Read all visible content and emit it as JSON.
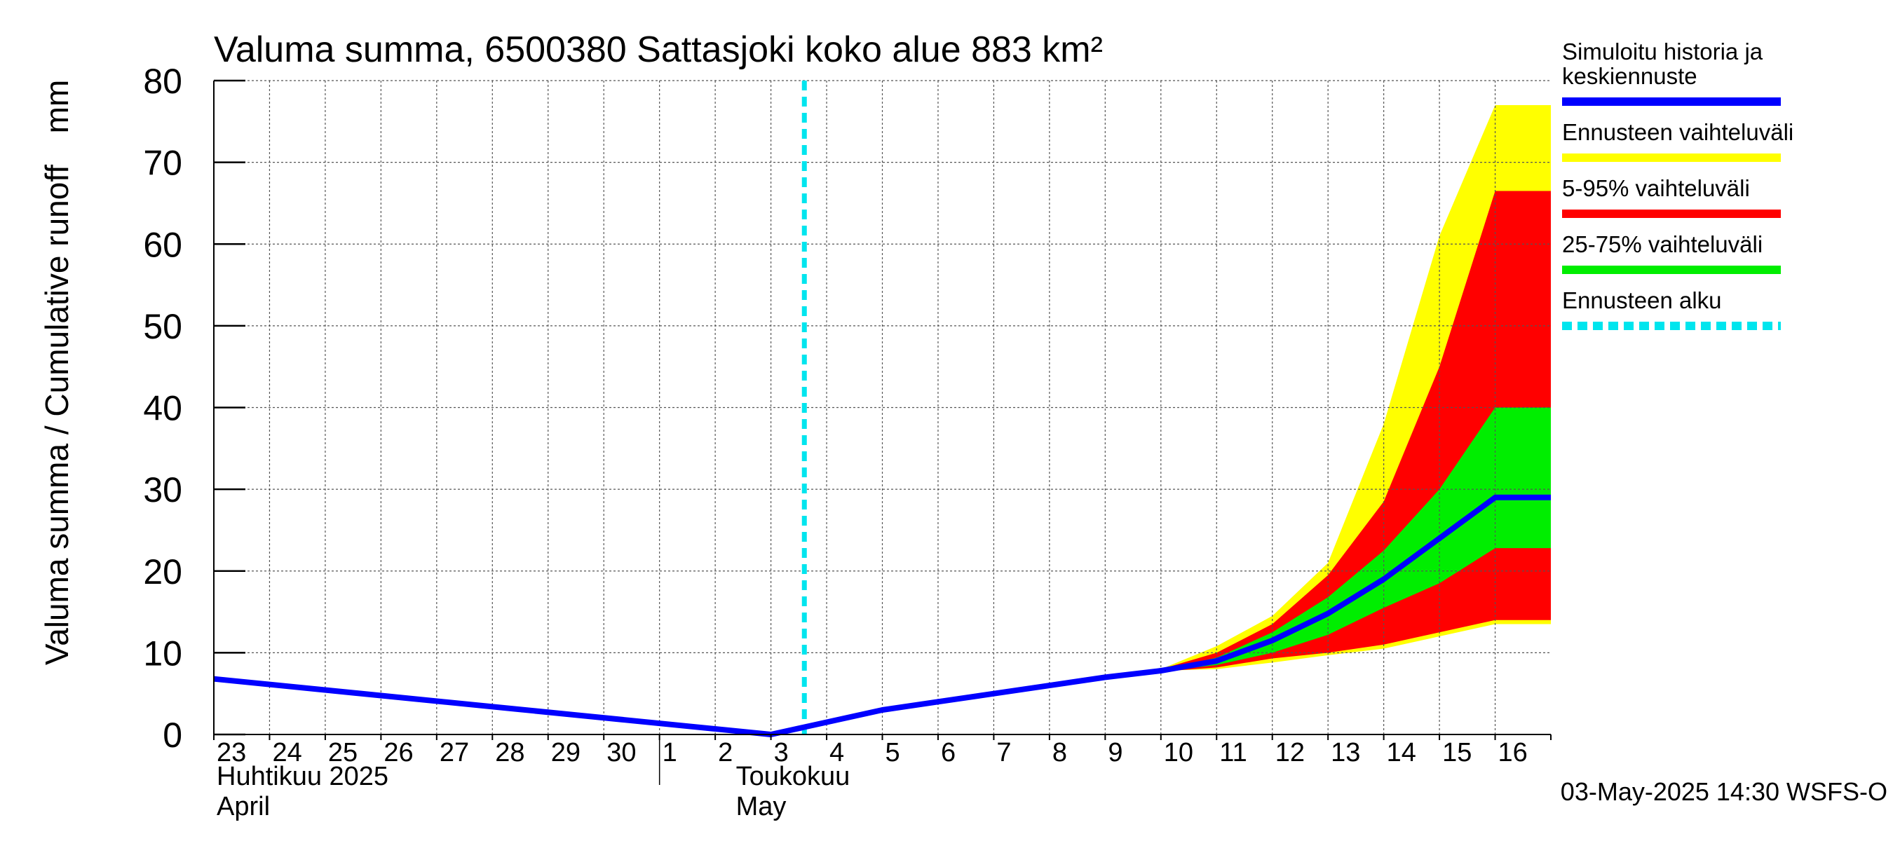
{
  "chart_data": {
    "type": "area",
    "title": "Valuma summa, 6500380 Sattasjoki koko alue 883 km²",
    "ylabel": "Valuma summa / Cumulative runoff",
    "yunit": "mm",
    "ylim": [
      0,
      80
    ],
    "yticks": [
      0,
      10,
      20,
      30,
      40,
      50,
      60,
      70,
      80
    ],
    "x_day_labels": [
      "23",
      "24",
      "25",
      "26",
      "27",
      "28",
      "29",
      "30",
      "1",
      "2",
      "3",
      "4",
      "5",
      "6",
      "7",
      "8",
      "9",
      "10",
      "11",
      "12",
      "13",
      "14",
      "15",
      "16"
    ],
    "month_labels": [
      {
        "fi": "Huhtikuu  2025",
        "en": "April"
      },
      {
        "fi": "Toukokuu",
        "en": "May"
      }
    ],
    "forecast_start": "3",
    "x": [
      "2025-04-23",
      "2025-05-03",
      "2025-05-04",
      "2025-05-05",
      "2025-05-06",
      "2025-05-07",
      "2025-05-08",
      "2025-05-09",
      "2025-05-10",
      "2025-05-11",
      "2025-05-12",
      "2025-05-13",
      "2025-05-14",
      "2025-05-15",
      "2025-05-16",
      "2025-05-17"
    ],
    "series": [
      {
        "name": "Ennusteen vaihteluväli",
        "kind": "band",
        "color": "#ffff00",
        "lower": [
          6.8,
          0,
          1.5,
          3.0,
          4.0,
          5.0,
          6.0,
          7.0,
          7.8,
          8.0,
          8.8,
          9.7,
          10.5,
          12.0,
          13.5,
          13.5
        ],
        "upper": [
          6.8,
          0,
          1.5,
          3.0,
          4.0,
          5.0,
          6.0,
          7.0,
          8.0,
          10.8,
          14.5,
          21.0,
          38.0,
          61.0,
          77.0,
          77.0
        ]
      },
      {
        "name": "5-95% vaihteluväli",
        "kind": "band",
        "color": "#ff0000",
        "lower": [
          6.8,
          0,
          1.5,
          3.0,
          4.0,
          5.0,
          6.0,
          7.0,
          7.7,
          8.2,
          9.3,
          10.0,
          11.0,
          12.5,
          14.0,
          14.0
        ],
        "upper": [
          6.8,
          0,
          1.5,
          3.0,
          4.0,
          5.0,
          6.0,
          7.0,
          8.0,
          10.0,
          13.5,
          19.5,
          28.5,
          45.0,
          66.5,
          66.5
        ]
      },
      {
        "name": "25-75% vaihteluväli",
        "kind": "band",
        "color": "#00ee00",
        "lower": [
          6.8,
          0,
          1.5,
          3.0,
          4.0,
          5.0,
          6.0,
          7.0,
          7.7,
          8.5,
          10.0,
          12.2,
          15.5,
          18.5,
          22.8,
          22.8
        ],
        "upper": [
          6.8,
          0,
          1.5,
          3.0,
          4.0,
          5.0,
          6.0,
          7.0,
          7.9,
          9.4,
          12.5,
          16.8,
          22.5,
          30.0,
          40.0,
          40.0
        ]
      },
      {
        "name": "Simuloitu historia ja keskiennuste",
        "kind": "line",
        "color": "#0000ff",
        "values": [
          6.8,
          0,
          1.5,
          3.0,
          4.0,
          5.0,
          6.0,
          7.0,
          7.8,
          9.0,
          11.5,
          14.8,
          19.0,
          24.0,
          29.0,
          29.0
        ]
      }
    ],
    "legend": {
      "placement": "right",
      "items": [
        {
          "label_lines": [
            "Simuloitu historia ja",
            "keskiennuste"
          ],
          "color": "#0000ff",
          "style": "solid"
        },
        {
          "label_lines": [
            "Ennusteen vaihteluväli"
          ],
          "color": "#ffff00",
          "style": "solid"
        },
        {
          "label_lines": [
            "5-95% vaihteluväli"
          ],
          "color": "#ff0000",
          "style": "solid"
        },
        {
          "label_lines": [
            "25-75% vaihteluväli"
          ],
          "color": "#00ee00",
          "style": "solid"
        },
        {
          "label_lines": [
            "Ennusteen alku"
          ],
          "color": "#00e5ee",
          "style": "dashed"
        }
      ]
    },
    "grid": true,
    "footer": "03-May-2025 14:30 WSFS-O"
  }
}
